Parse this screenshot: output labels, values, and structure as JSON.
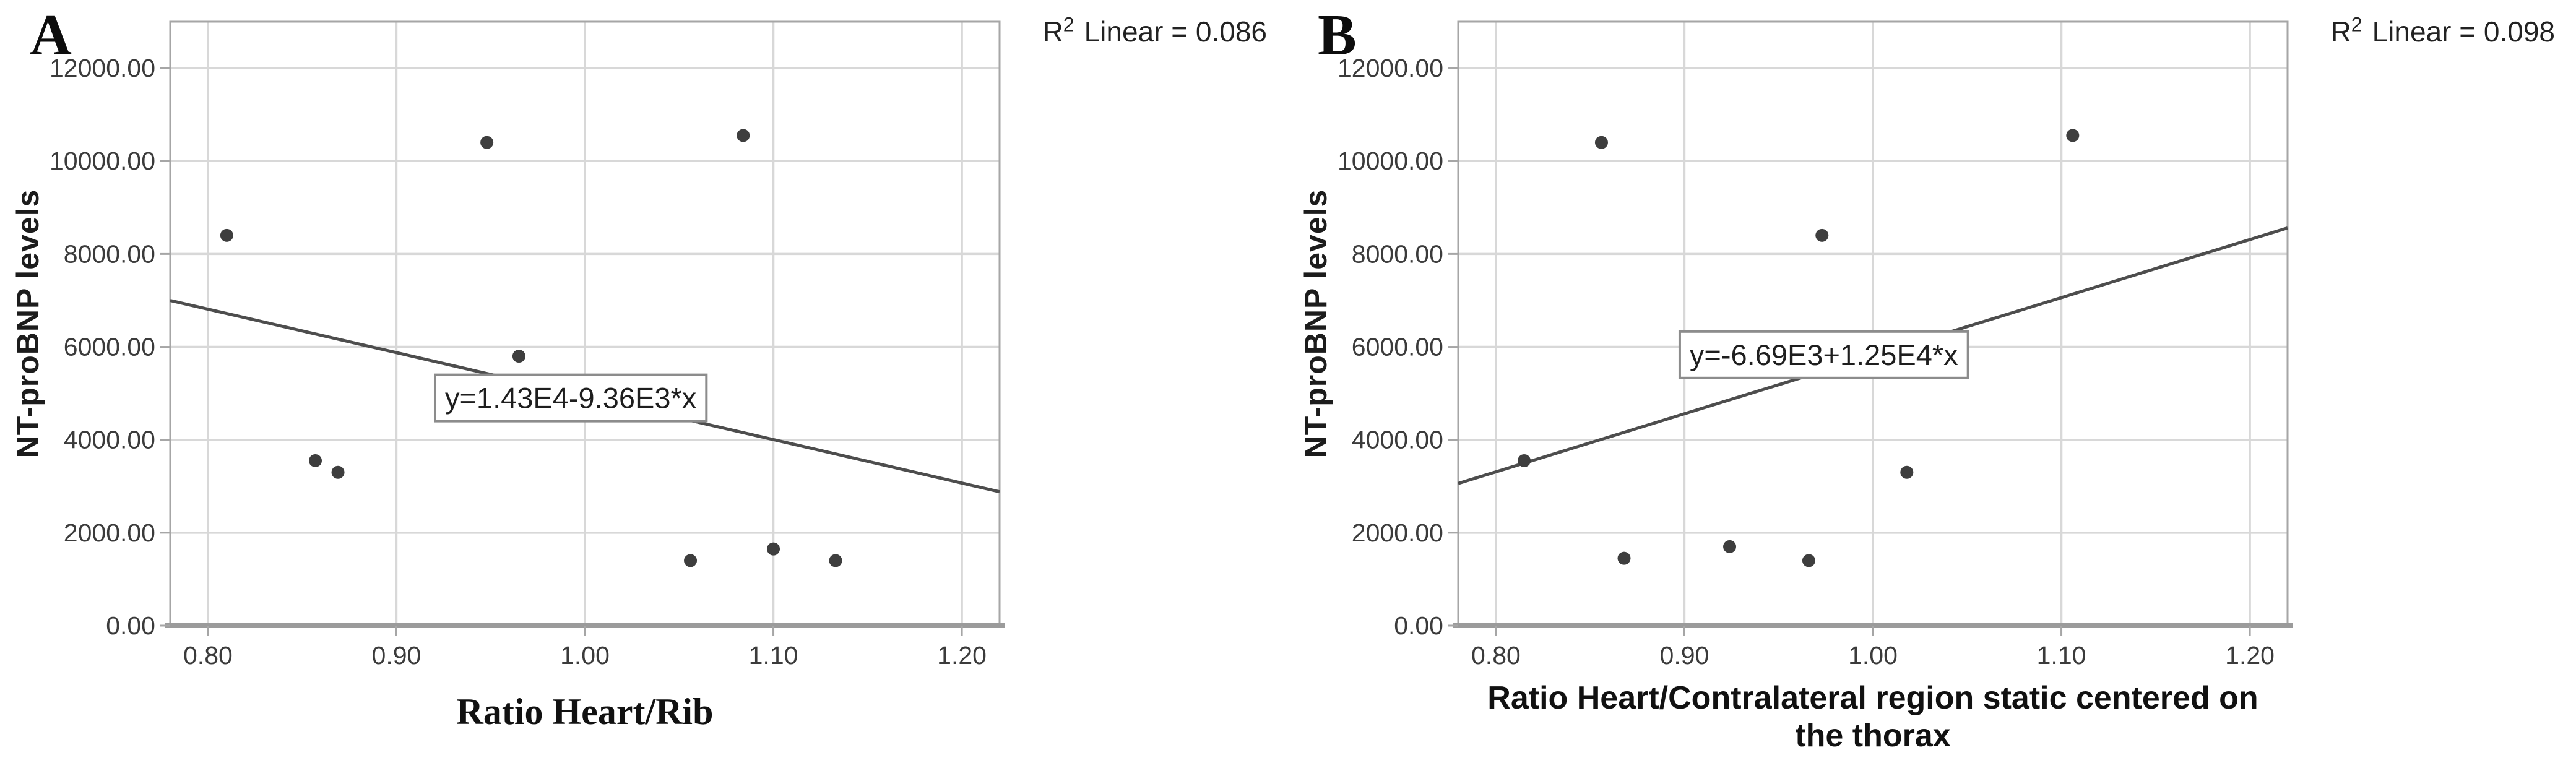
{
  "figure": {
    "background": "#ffffff"
  },
  "colors": {
    "point": "#3e3e3e",
    "regression_line": "#4d4d4d",
    "gridline": "#d8d8d8",
    "frame": "#a6a6a6",
    "axis_line": "#9b9b9b",
    "tick_text": "#3b3b3b",
    "title_text": "#1c1c1c",
    "equation_border": "#8c8c8c",
    "equation_fill": "#ffffff",
    "equation_text": "#1e1e1e"
  },
  "chart_data": [
    {
      "type": "scatter",
      "panel_label": "A",
      "xlabel": "Ratio Heart/Rib",
      "ylabel": "NT-proBNP levels",
      "r2": {
        "base": "R",
        "sup": "2",
        "text": "Linear = 0.086"
      },
      "equation": {
        "text": "y=1.43E4-9.36E3*x",
        "intercept": 14300,
        "slope": -9360,
        "anchor_x": 0.9925,
        "anchor_y": 4900
      },
      "xlim": [
        0.78,
        1.22
      ],
      "ylim": [
        0,
        13000
      ],
      "grid": true,
      "legend": "none",
      "xticks": {
        "values": [
          0.8,
          0.9,
          1.0,
          1.1,
          1.2
        ],
        "labels": [
          "0.80",
          "0.90",
          "1.00",
          "1.10",
          "1.20"
        ]
      },
      "yticks": {
        "values": [
          0,
          2000,
          4000,
          6000,
          8000,
          10000,
          12000
        ],
        "labels": [
          "0.00",
          "2000.00",
          "4000.00",
          "6000.00",
          "8000.00",
          "10000.00",
          "12000.00"
        ]
      },
      "points": [
        [
          0.81,
          8400
        ],
        [
          0.857,
          3550
        ],
        [
          0.869,
          3300
        ],
        [
          0.948,
          10400
        ],
        [
          0.965,
          5800
        ],
        [
          1.056,
          1400
        ],
        [
          1.084,
          10550
        ],
        [
          1.1,
          1650
        ],
        [
          1.133,
          1400
        ]
      ]
    },
    {
      "type": "scatter",
      "panel_label": "B",
      "xlabel": "Ratio Heart/Contralateral region static centered on\nthe thorax",
      "ylabel": "NT-proBNP levels",
      "r2": {
        "base": "R",
        "sup": "2",
        "text": "Linear = 0.098"
      },
      "equation": {
        "text": "y=-6.69E3+1.25E4*x",
        "intercept": -6690,
        "slope": 12500,
        "anchor_x": 0.974,
        "anchor_y": 5830
      },
      "xlim": [
        0.78,
        1.22
      ],
      "ylim": [
        0,
        13000
      ],
      "grid": true,
      "legend": "none",
      "xticks": {
        "values": [
          0.8,
          0.9,
          1.0,
          1.1,
          1.2
        ],
        "labels": [
          "0.80",
          "0.90",
          "1.00",
          "1.10",
          "1.20"
        ]
      },
      "yticks": {
        "values": [
          0,
          2000,
          4000,
          6000,
          8000,
          10000,
          12000
        ],
        "labels": [
          "0.00",
          "2000.00",
          "4000.00",
          "6000.00",
          "8000.00",
          "10000.00",
          "12000.00"
        ]
      },
      "points": [
        [
          0.815,
          3550
        ],
        [
          0.856,
          10400
        ],
        [
          0.868,
          1450
        ],
        [
          0.924,
          1700
        ],
        [
          0.966,
          1400
        ],
        [
          0.973,
          8400
        ],
        [
          1.018,
          3300
        ],
        [
          1.106,
          10550
        ]
      ]
    }
  ]
}
